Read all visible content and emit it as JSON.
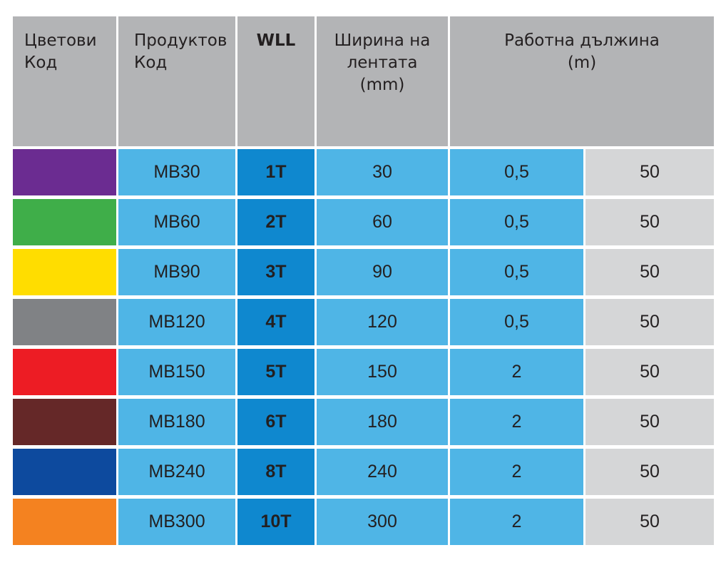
{
  "header": {
    "color_code": [
      "Цветови",
      "Код"
    ],
    "product_code": [
      "Продуктов",
      "Код"
    ],
    "wll": "WLL",
    "band_width": [
      "Ширина на",
      "лентата",
      "(mm)"
    ],
    "working_length": [
      "Работна дължина",
      "(m)"
    ]
  },
  "colors": {
    "header_bg": "#b3b4b6",
    "light_blue": "#4fb5e6",
    "dark_blue": "#0f88cf",
    "light_grey": "#d5d6d7"
  },
  "rows": [
    {
      "swatch": "#6b2c91",
      "product": "MB30",
      "wll": "1T",
      "width": "30",
      "length": "0,5",
      "value": "50"
    },
    {
      "swatch": "#3fae49",
      "product": "MB60",
      "wll": "2T",
      "width": "60",
      "length": "0,5",
      "value": "50"
    },
    {
      "swatch": "#ffdd00",
      "product": "MB90",
      "wll": "3T",
      "width": "90",
      "length": "0,5",
      "value": "50"
    },
    {
      "swatch": "#808285",
      "product": "MB120",
      "wll": "4T",
      "width": "120",
      "length": "0,5",
      "value": "50"
    },
    {
      "swatch": "#ed1c24",
      "product": "MB150",
      "wll": "5T",
      "width": "150",
      "length": "2",
      "value": "50"
    },
    {
      "swatch": "#652828",
      "product": "MB180",
      "wll": "6T",
      "width": "180",
      "length": "2",
      "value": "50"
    },
    {
      "swatch": "#0d4a9e",
      "product": "MB240",
      "wll": "8T",
      "width": "240",
      "length": "2",
      "value": "50"
    },
    {
      "swatch": "#f48220",
      "product": "MB300",
      "wll": "10T",
      "width": "300",
      "length": "2",
      "value": "50"
    }
  ]
}
